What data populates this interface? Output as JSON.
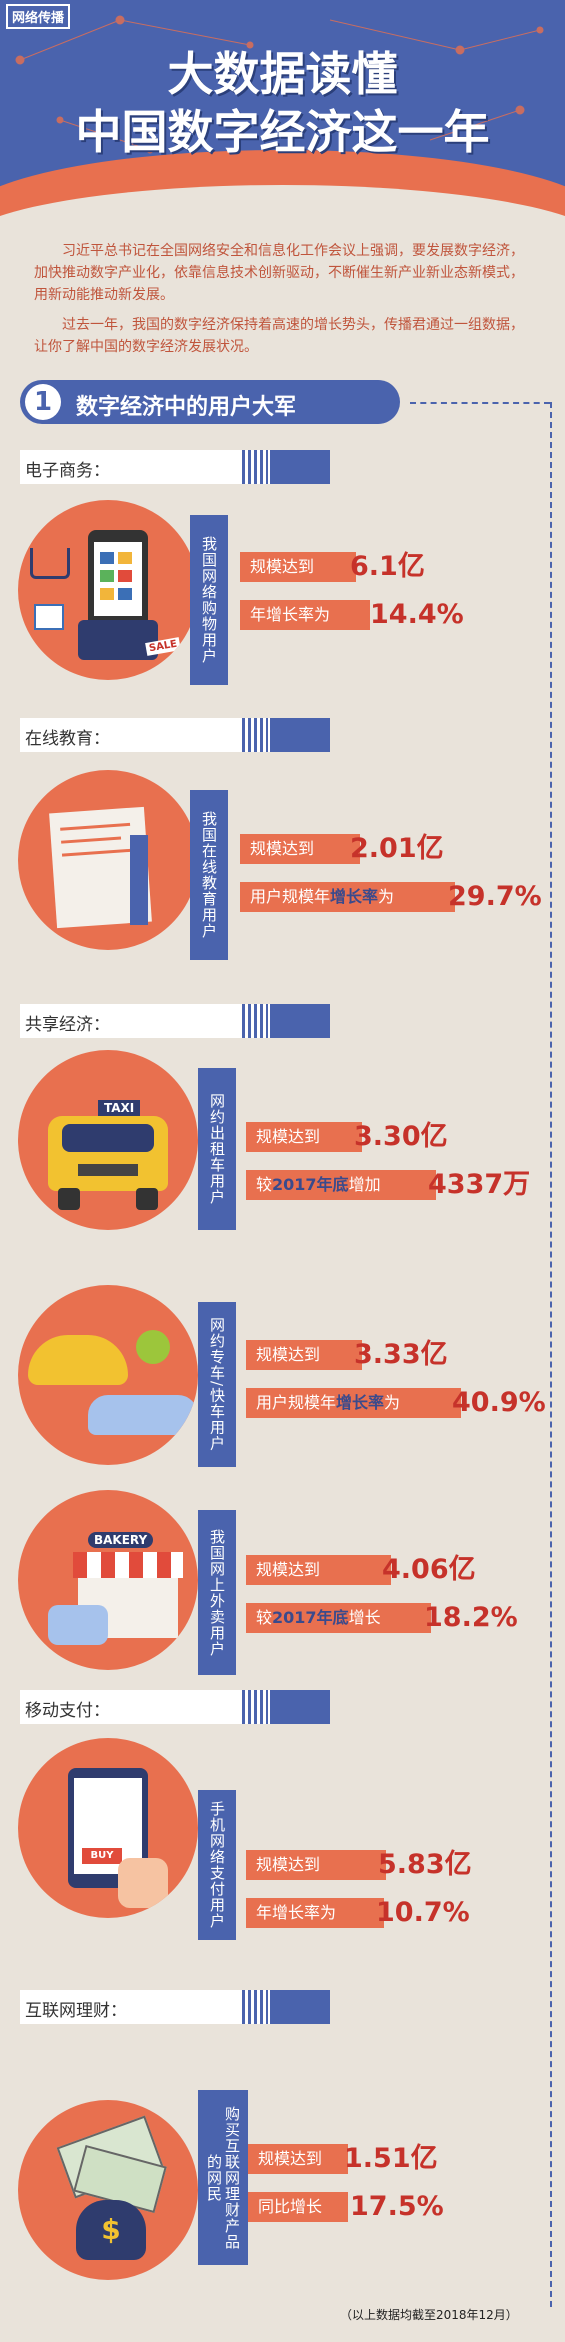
{
  "header": {
    "logo": "网络传播",
    "title_line1": "大数据读懂",
    "title_line2": "中国数字经济这一年"
  },
  "intro": {
    "p1": "习近平总书记在全国网络安全和信息化工作会议上强调，要发展数字经济，加快推动数字产业化，依靠信息技术创新驱动，不断催生新产业新业态新模式，用新动能推动新发展。",
    "p2": "过去一年，我国的数字经济保持着高速的增长势头，传播君通过一组数据，让你了解中国的数字经济发展状况。"
  },
  "section1": {
    "number": "1",
    "title": "数字经济中的用户大军"
  },
  "categories": {
    "ecommerce": "电子商务：",
    "education": "在线教育：",
    "sharing": "共享经济：",
    "payment": "移动支付：",
    "finance": "互联网理财："
  },
  "items": {
    "shopping": {
      "vlabel": "我国网络购物用户",
      "l1": "规模达到",
      "v1": "6.1亿",
      "l2": "年增长率为",
      "v2": "14.4%",
      "sale_tag": "SALE"
    },
    "education": {
      "vlabel": "我国在线教育用户",
      "l1": "规模达到",
      "v1": "2.01亿",
      "l2a": "用户规模年",
      "l2b": "增长率",
      "l2c": "为",
      "v2": "29.7%"
    },
    "taxi": {
      "vlabel": "网约出租车用户",
      "l1": "规模达到",
      "v1": "3.30亿",
      "l2a": "较",
      "l2b": "2017年底",
      "l2c": "增加",
      "v2": "4337万",
      "sign": "TAXI"
    },
    "carhail": {
      "vlabel": "网约专车/快车用户",
      "l1": "规模达到",
      "v1": "3.33亿",
      "l2a": "用户规模年",
      "l2b": "增长率",
      "l2c": "为",
      "v2": "40.9%"
    },
    "takeout": {
      "vlabel": "我国网上外卖用户",
      "l1": "规模达到",
      "v1": "4.06亿",
      "l2a": "较",
      "l2b": "2017年底",
      "l2c": "增长",
      "v2": "18.2%",
      "sign": "BAKERY"
    },
    "payment": {
      "vlabel": "手机网络支付用户",
      "l1": "规模达到",
      "v1": "5.83亿",
      "l2": "年增长率为",
      "v2": "10.7%",
      "buy": "BUY"
    },
    "finance": {
      "vlabel": "购买互联网理财产品的网民",
      "l1": "规模达到",
      "v1": "1.51亿",
      "l2": "同比增长",
      "v2": "17.5%"
    }
  },
  "footnote": "（以上数据均截至2018年12月）",
  "colors": {
    "blue": "#4a63ad",
    "orange": "#e8704f",
    "red_value": "#c6322a",
    "bg": "#e9e3da"
  }
}
